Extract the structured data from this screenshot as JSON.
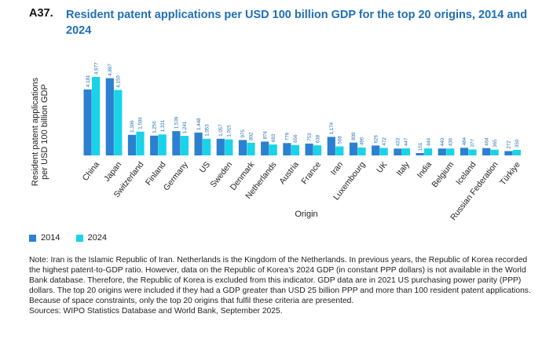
{
  "figure": {
    "id": "A37.",
    "title": "Resident patent applications per USD 100 billion GDP for the top 20 origins, 2014 and 2024"
  },
  "colors": {
    "series_2014": "#2b80d0",
    "series_2024": "#19d3e8",
    "title": "#1f6fb7"
  },
  "chart_data": {
    "type": "bar",
    "xlabel": "Origin",
    "ylabel": "Resident patent applications per USD 100 billion GDP",
    "ylim": [
      0,
      5100
    ],
    "grid": false,
    "legend_position": "bottom-left",
    "categories": [
      "China",
      "Japan",
      "Switzerland",
      "Finland",
      "Germany",
      "US",
      "Sweden",
      "Denmark",
      "Netherlands",
      "Austria",
      "France",
      "Iran",
      "Luxembourg",
      "UK",
      "Italy",
      "India",
      "Belgium",
      "Iceland",
      "Russian Federation",
      "Türkiye"
    ],
    "series": [
      {
        "name": "2014",
        "values": [
          4181,
          4897,
          1306,
          1256,
          1539,
          1448,
          1057,
          975,
          874,
          779,
          753,
          1174,
          809,
          626,
          433,
          151,
          440,
          484,
          464,
          272
        ],
        "labels": [
          "4,181",
          "4,897",
          "1,306",
          "1,256",
          "1,539",
          "1,448",
          "1,057",
          "975",
          "874",
          "779",
          "753",
          "1,174",
          "809",
          "626",
          "433",
          "151",
          "440",
          "484",
          "464",
          "272"
        ]
      },
      {
        "name": "2024",
        "values": [
          4977,
          4150,
          1506,
          1331,
          1241,
          1053,
          1015,
          802,
          693,
          656,
          638,
          568,
          496,
          472,
          447,
          444,
          436,
          377,
          365,
          350
        ],
        "labels": [
          "4,977",
          "4,150",
          "1,506",
          "1,331",
          "1,241",
          "1,053",
          "1,015",
          "802",
          "693",
          "656",
          "638",
          "568",
          "496",
          "472",
          "447",
          "444",
          "436",
          "377",
          "365",
          "350"
        ]
      }
    ]
  },
  "note": {
    "text": "Note: Iran is the Islamic Republic of Iran. Netherlands is the Kingdom of the Netherlands. In previous years, the Republic of Korea recorded the highest patent-to-GDP ratio. However, data on the Republic of Korea’s 2024 GDP (in constant PPP dollars) is not available in the World Bank database. Therefore, the Republic of Korea is excluded from this indicator. GDP data are in 2021 US purchasing power parity (PPP) dollars. The top 20 origins were included if they had a GDP greater than USD 25 billion PPP and more than 100 resident patent applications. Because of space constraints, only the top 20 origins that fulfil these criteria are presented.",
    "sources": "Sources: WIPO Statistics Database and World Bank, September 2025."
  }
}
